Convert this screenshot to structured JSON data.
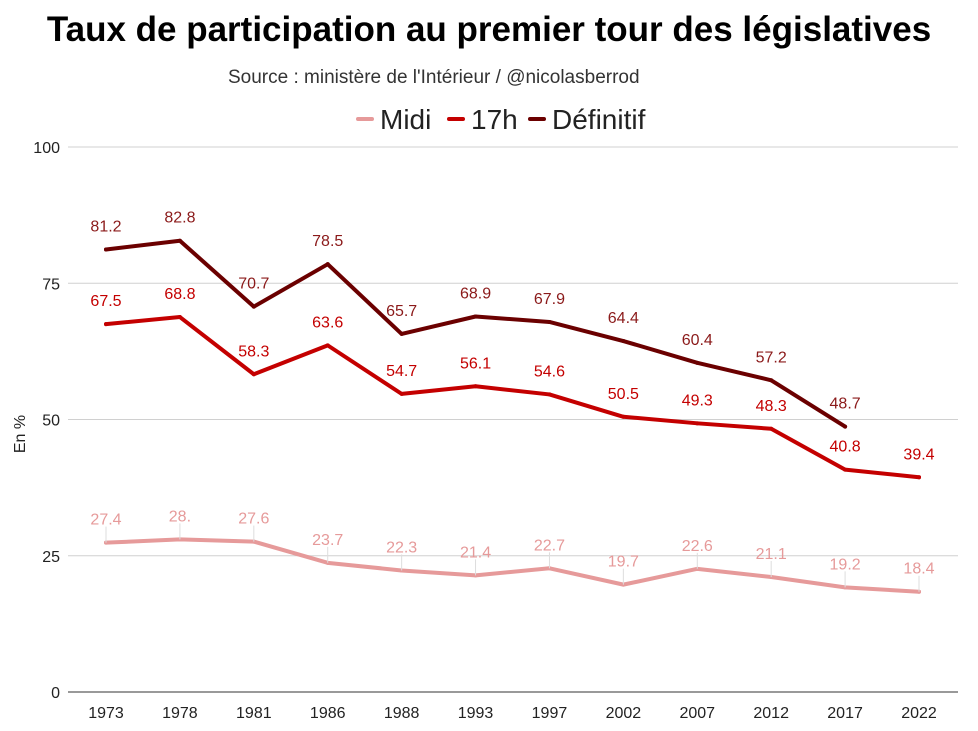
{
  "chart_data": {
    "type": "line",
    "title": "Taux de participation au premier tour des législatives",
    "subtitle": "Source : ministère de l'Intérieur / @nicolasberrod",
    "xlabel": "",
    "ylabel": "En %",
    "ylim": [
      0,
      100
    ],
    "yticks": [
      "0",
      "25",
      "50",
      "75",
      "100"
    ],
    "grid": true,
    "legend_position": "top",
    "categories": [
      "1973",
      "1978",
      "1981",
      "1986",
      "1988",
      "1993",
      "1997",
      "2002",
      "2007",
      "2012",
      "2017",
      "2022"
    ],
    "series": [
      {
        "name": "Midi",
        "color": "#e69a9a",
        "values": [
          27.4,
          28.0,
          27.6,
          23.7,
          22.3,
          21.4,
          22.7,
          19.7,
          22.6,
          21.1,
          19.2,
          18.4
        ],
        "labels": [
          "27.4",
          "28.",
          "27.6",
          "23.7",
          "22.3",
          "21.4",
          "22.7",
          "19.7",
          "22.6",
          "21.1",
          "19.2",
          "18.4"
        ]
      },
      {
        "name": "17h",
        "color": "#c40000",
        "values": [
          67.5,
          68.8,
          58.3,
          63.6,
          54.7,
          56.1,
          54.6,
          50.5,
          49.3,
          48.3,
          40.8,
          39.4
        ],
        "labels": [
          "67.5",
          "68.8",
          "58.3",
          "63.6",
          "54.7",
          "56.1",
          "54.6",
          "50.5",
          "49.3",
          "48.3",
          "40.8",
          "39.4"
        ]
      },
      {
        "name": "Définitif",
        "color": "#6b0000",
        "values": [
          81.2,
          82.8,
          70.7,
          78.5,
          65.7,
          68.9,
          67.9,
          64.4,
          60.4,
          57.2,
          48.7,
          null
        ],
        "labels": [
          "81.2",
          "82.8",
          "70.7",
          "78.5",
          "65.7",
          "68.9",
          "67.9",
          "64.4",
          "60.4",
          "57.2",
          "48.7",
          null
        ]
      }
    ]
  }
}
